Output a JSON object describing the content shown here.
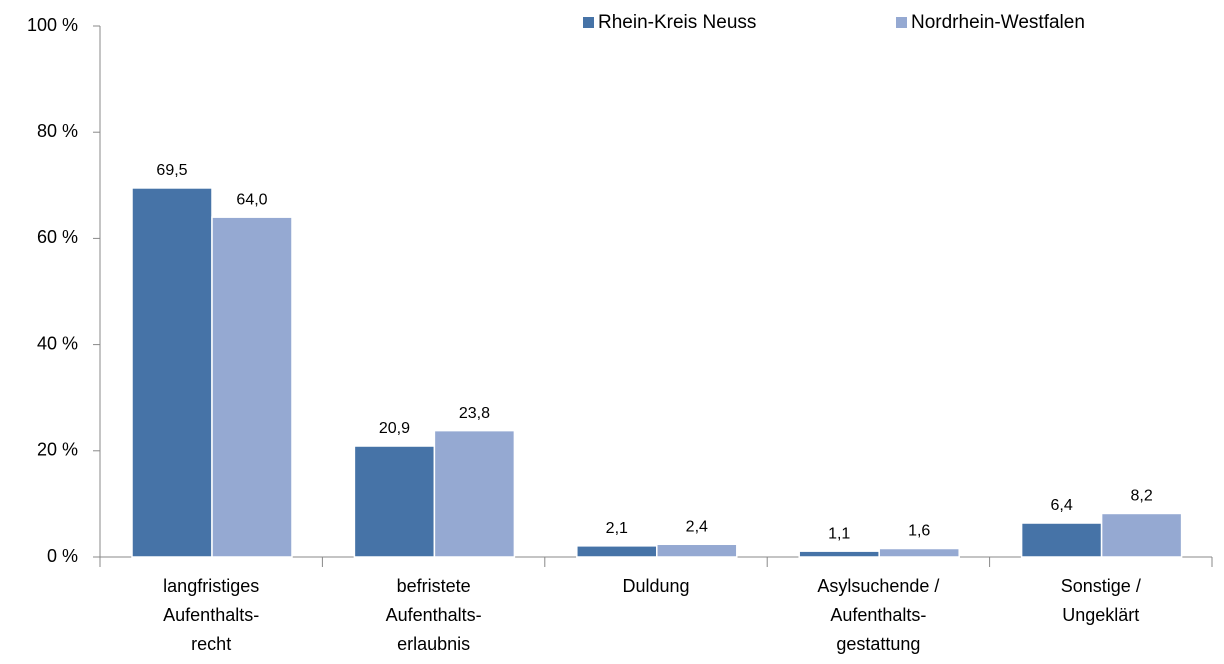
{
  "chart_data": {
    "type": "bar",
    "categories": [
      [
        "langfristiges",
        "Aufenthalts-",
        "recht"
      ],
      [
        "befristete",
        "Aufenthalts-",
        "erlaubnis"
      ],
      [
        "Duldung"
      ],
      [
        "Asylsuchende /",
        "Aufenthalts-",
        "gestattung"
      ],
      [
        "Sonstige /",
        "Ungeklärt"
      ]
    ],
    "series": [
      {
        "name": "Rhein-Kreis Neuss",
        "color": "#4673a7",
        "values": [
          69.5,
          20.9,
          2.1,
          1.1,
          6.4
        ],
        "value_labels": [
          "69,5",
          "20,9",
          "2,1",
          "1,1",
          "6,4"
        ]
      },
      {
        "name": "Nordrhein-Westfalen",
        "color": "#95a9d2",
        "values": [
          64.0,
          23.8,
          2.4,
          1.6,
          8.2
        ],
        "value_labels": [
          "64,0",
          "23,8",
          "2,4",
          "1,6",
          "8,2"
        ]
      }
    ],
    "ylim": [
      0,
      100
    ],
    "yticks": [
      {
        "value": 0,
        "label": "0 %"
      },
      {
        "value": 20,
        "label": "20 %"
      },
      {
        "value": 40,
        "label": "40 %"
      },
      {
        "value": 60,
        "label": "60 %"
      },
      {
        "value": 80,
        "label": "80 %"
      },
      {
        "value": 100,
        "label": "100 %"
      }
    ],
    "legend": "top-right"
  }
}
